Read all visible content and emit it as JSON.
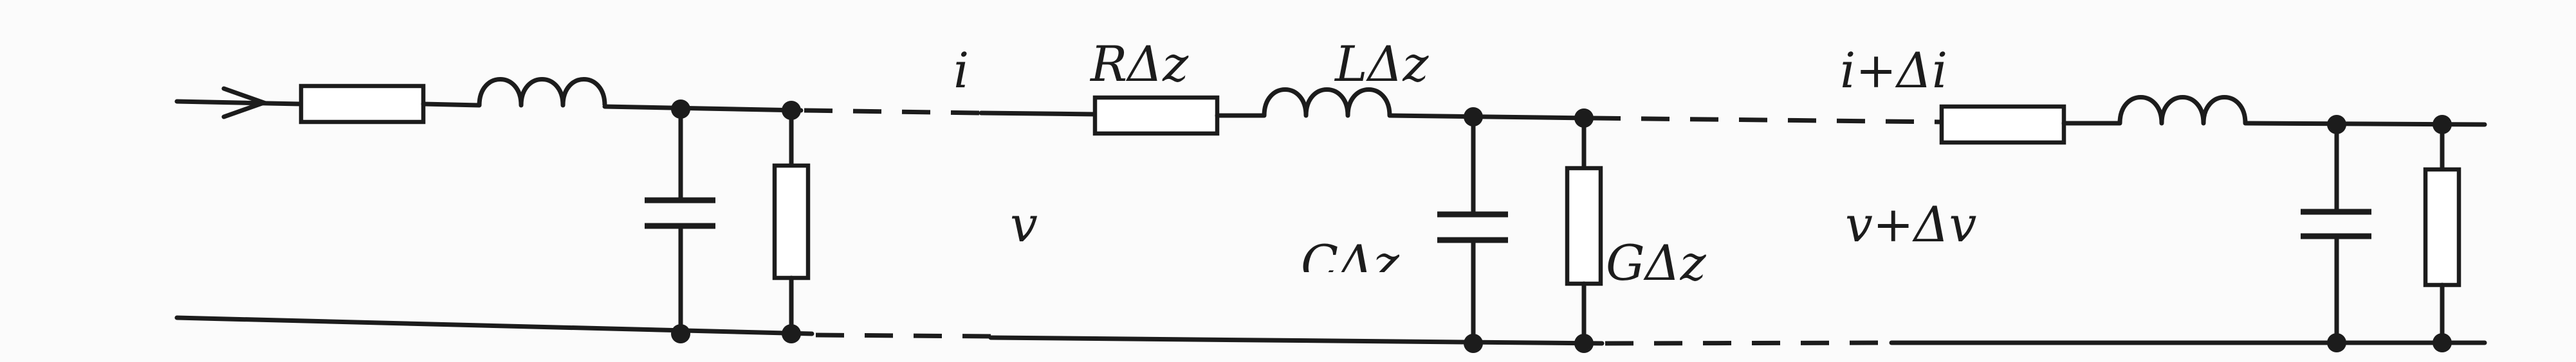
{
  "diagram": {
    "labels": {
      "current": "i",
      "resistance": "RΔz",
      "inductance": "LΔz",
      "current_next": "i+Δi",
      "voltage": "v",
      "capacitance": "CΔz",
      "conductance": "GΔz",
      "voltage_next": "v+Δv"
    }
  }
}
